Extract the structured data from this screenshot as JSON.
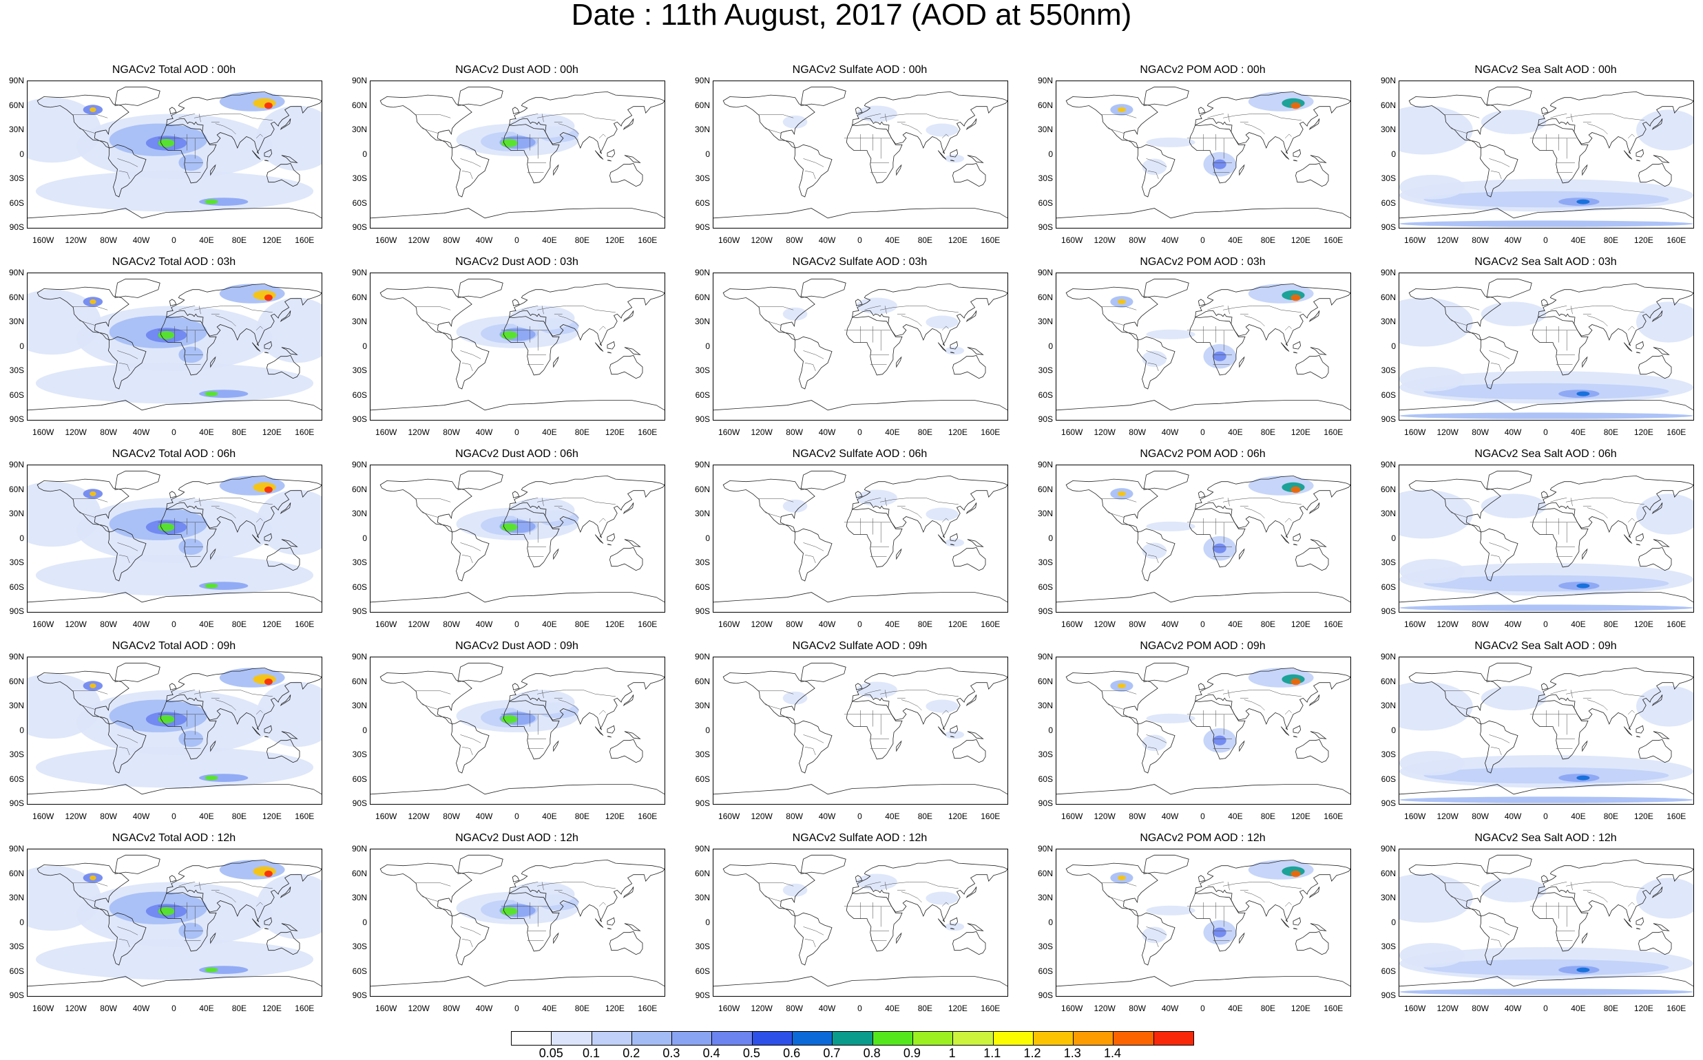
{
  "title": "Date : 11th August, 2017 (AOD at 550nm)",
  "lat_ticks": [
    "90N",
    "60N",
    "30N",
    "0",
    "30S",
    "60S",
    "90S"
  ],
  "lon_ticks": [
    "160W",
    "120W",
    "80W",
    "40W",
    "0",
    "40E",
    "80E",
    "120E",
    "160E"
  ],
  "panel_titles": [
    [
      "NGACv2 Total AOD : 00h",
      "NGACv2 Dust AOD : 00h",
      "NGACv2 Sulfate AOD : 00h",
      "NGACv2 POM AOD : 00h",
      "NGACv2 Sea Salt AOD : 00h"
    ],
    [
      "NGACv2 Total AOD : 03h",
      "NGACv2 Dust AOD : 03h",
      "NGACv2 Sulfate AOD : 03h",
      "NGACv2 POM AOD : 03h",
      "NGACv2 Sea Salt AOD : 03h"
    ],
    [
      "NGACv2 Total AOD : 06h",
      "NGACv2 Dust AOD : 06h",
      "NGACv2 Sulfate AOD : 06h",
      "NGACv2 POM AOD : 06h",
      "NGACv2 Sea Salt AOD : 06h"
    ],
    [
      "NGACv2 Total AOD : 09h",
      "NGACv2 Dust AOD : 09h",
      "NGACv2 Sulfate AOD : 09h",
      "NGACv2 POM AOD : 09h",
      "NGACv2 Sea Salt  AOD : 09h"
    ],
    [
      "NGACv2 Total AOD  : 12h",
      "NGACv2 Dust AOD : 12h",
      "NGACv2 Sulfate AOD : 12h",
      "NGACv2 POM  AOD : 12h",
      "NGACv2 Sea Salt  AOD : 12h"
    ]
  ],
  "colorbar": {
    "labels": [
      "0.05",
      "0.1",
      "0.2",
      "0.3",
      "0.4",
      "0.5",
      "0.6",
      "0.7",
      "0.8",
      "0.9",
      "1",
      "1.1",
      "1.2",
      "1.3",
      "1.4"
    ],
    "colors": [
      "#ffffff",
      "#dbe4fa",
      "#c0d0f8",
      "#a4bcf6",
      "#8aa4f4",
      "#6c84f0",
      "#2c50e8",
      "#0c6ad8",
      "#099c8c",
      "#54e81c",
      "#9cf020",
      "#ccf43c",
      "#fcfc00",
      "#fcc400",
      "#fc9c00",
      "#fc6400",
      "#f82808"
    ]
  }
}
